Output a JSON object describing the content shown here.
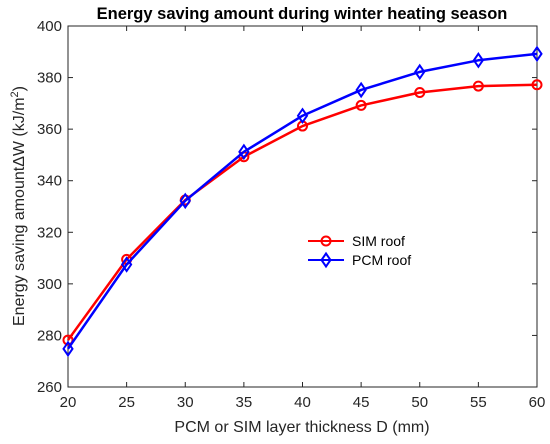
{
  "chart_data": {
    "type": "line",
    "title": "Energy saving amount during winter heating season",
    "xlabel": "PCM or SIM layer thickness D (mm)",
    "ylabel": "Energy saving amountΔW (kJ/m²)",
    "ylabel_parts": {
      "main": "Energy saving amountΔW (kJ/m",
      "sup": "2",
      "end": ")"
    },
    "x": [
      20,
      25,
      30,
      35,
      40,
      45,
      50,
      55,
      60
    ],
    "xlim": [
      20,
      60
    ],
    "ylim": [
      260,
      400
    ],
    "xticks": [
      "20",
      "25",
      "30",
      "35",
      "40",
      "45",
      "50",
      "55",
      "60"
    ],
    "yticks": [
      "260",
      "280",
      "300",
      "320",
      "340",
      "360",
      "380",
      "400"
    ],
    "legend_position": "center-right",
    "grid": false,
    "series": [
      {
        "name": "SIM roof",
        "color": "#ff0000",
        "marker": "circle",
        "values": [
          278.2,
          309.5,
          332.5,
          349.3,
          361.2,
          369.2,
          374.2,
          376.7,
          377.2
        ]
      },
      {
        "name": "PCM roof",
        "color": "#0000ff",
        "marker": "diamond",
        "values": [
          274.8,
          307.5,
          332.2,
          351.2,
          365.2,
          375.2,
          382.2,
          386.7,
          389.2
        ]
      }
    ]
  }
}
